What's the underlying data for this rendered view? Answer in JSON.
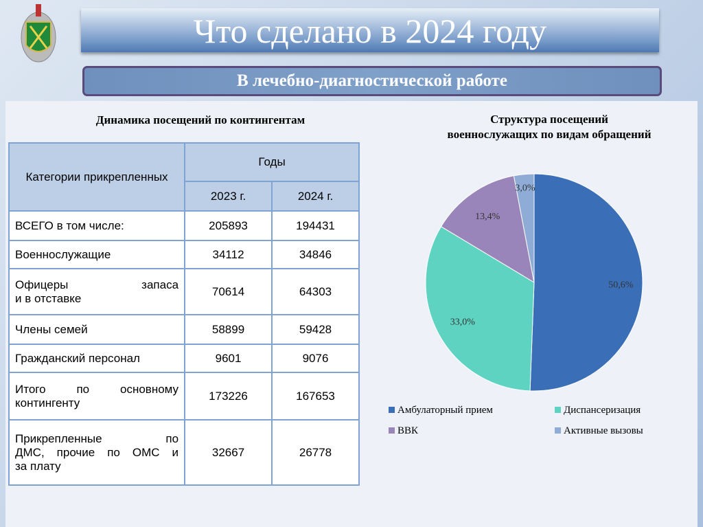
{
  "header": {
    "title": "Что сделано в 2024 году",
    "subtitle": "В лечебно-диагностической работе"
  },
  "table": {
    "title": "Динамика посещений по контингентам",
    "col_category": "Категории прикрепленных",
    "col_years": "Годы",
    "years": [
      "2023 г.",
      "2024 г."
    ],
    "rows": [
      {
        "label": "ВСЕГО  в том числе:",
        "v2023": "205893",
        "v2024": "194431"
      },
      {
        "label": "Военнослужащие",
        "v2023": "34112",
        "v2024": "34846"
      },
      {
        "label1": "Офицеры запаса",
        "label2": "и в отставке",
        "v2023": "70614",
        "v2024": "64303"
      },
      {
        "label": "Члены семей",
        "v2023": "58899",
        "v2024": "59428"
      },
      {
        "label": "Гражданский персонал",
        "v2023": "9601",
        "v2024": "9076"
      },
      {
        "label1": "Итого по основному",
        "label2": "контингенту",
        "v2023": "173226",
        "v2024": "167653"
      },
      {
        "label1": "Прикрепленные по",
        "label2": "ДМС, прочие по ОМС и",
        "label3": "за плату",
        "v2023": "32667",
        "v2024": "26778"
      }
    ]
  },
  "chart_data": {
    "type": "pie",
    "title": "Структура посещений военнослужащих по видам обращений",
    "title_lines": [
      "Структура посещений",
      "военнослужащих по видам обращений"
    ],
    "categories": [
      "Амбулаторный прием",
      "Диспансеризация",
      "ВВК",
      "Активные вызовы"
    ],
    "values": [
      50.6,
      33.0,
      13.4,
      3.0
    ],
    "labels": [
      "50,6%",
      "33,0%",
      "13,4%",
      "3,0%"
    ],
    "colors": [
      "#3a6fb8",
      "#5fd3c2",
      "#9a85bb",
      "#8eacd6"
    ],
    "legend": "bottom"
  }
}
